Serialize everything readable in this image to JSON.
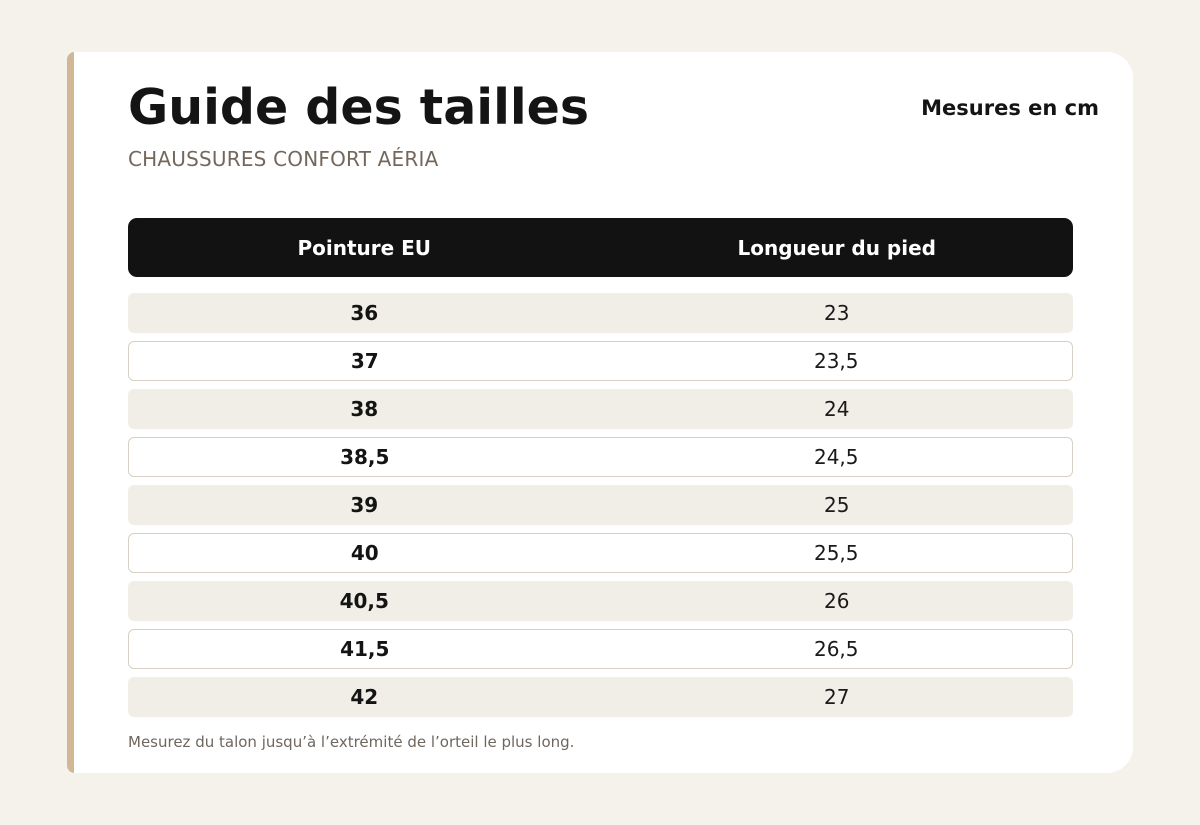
{
  "header": {
    "title": "Guide des tailles",
    "subtitle": "CHAUSSURES CONFORT AÉRIA",
    "units": "Mesures en cm"
  },
  "table": {
    "columns": [
      "Pointure EU",
      "Longueur du pied"
    ],
    "rows": [
      [
        "36",
        "23"
      ],
      [
        "37",
        "23,5"
      ],
      [
        "38",
        "24"
      ],
      [
        "38,5",
        "24,5"
      ],
      [
        "39",
        "25"
      ],
      [
        "40",
        "25,5"
      ],
      [
        "40,5",
        "26"
      ],
      [
        "41,5",
        "26,5"
      ],
      [
        "42",
        "27"
      ]
    ]
  },
  "footnote": "Mesurez du talon jusqu’à l’extrémité de l’orteil le plus long.",
  "colors": {
    "accent": "#d2b797",
    "header_bg": "#121212",
    "row_shade": "#f1eee7",
    "page_bg": "#f5f2ec"
  }
}
